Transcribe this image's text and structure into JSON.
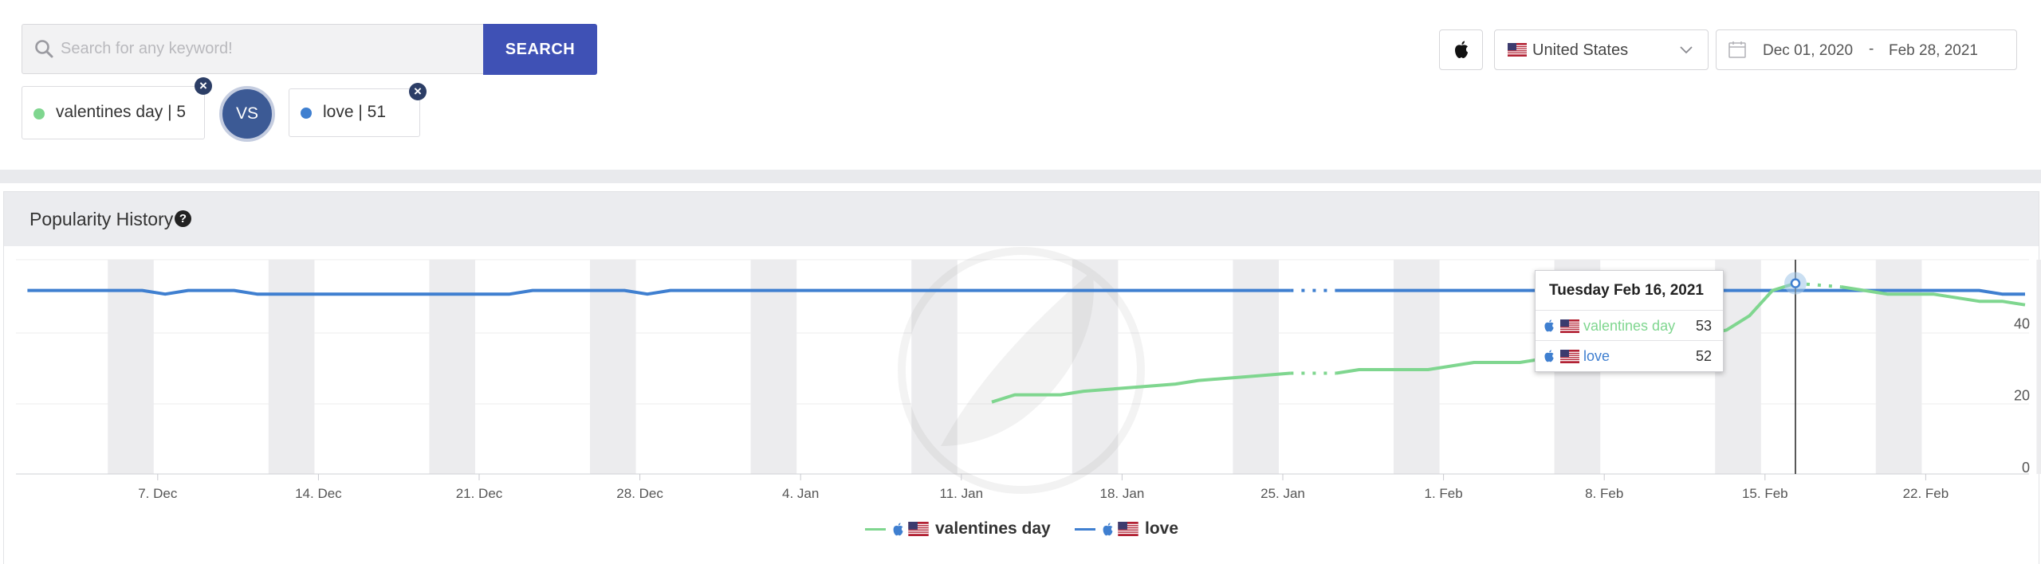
{
  "search": {
    "placeholder": "Search for any keyword!",
    "button_label": "SEARCH"
  },
  "filters": {
    "platform_icon": "apple-icon",
    "country": "United States",
    "date_from": "Dec 01, 2020",
    "date_sep": "-",
    "date_to": "Feb 28, 2021"
  },
  "compare": {
    "vs_label": "VS",
    "keywords": [
      {
        "label": "valentines day | 5",
        "color": "#7fd68f"
      },
      {
        "label": "love | 51",
        "color": "#3f7fd0"
      }
    ]
  },
  "panel": {
    "title": "Popularity History",
    "help_icon": "question-circle-icon"
  },
  "tooltip": {
    "date": "Tuesday Feb 16, 2021",
    "rows": [
      {
        "name": "valentines day",
        "value": "53",
        "color": "#7fd68f"
      },
      {
        "name": "love",
        "value": "52",
        "color": "#3f7fd0"
      }
    ]
  },
  "legend": [
    {
      "name": "valentines day",
      "color": "#7fd68f"
    },
    {
      "name": "love",
      "color": "#3f7fd0"
    }
  ],
  "chart_data": {
    "type": "line",
    "x_start": "2020-12-01",
    "x_end": "2021-02-26",
    "x_ticks": [
      "7. Dec",
      "14. Dec",
      "21. Dec",
      "28. Dec",
      "4. Jan",
      "11. Jan",
      "18. Jan",
      "25. Jan",
      "1. Feb",
      "8. Feb",
      "15. Feb",
      "22. Feb"
    ],
    "y_ticks": [
      "0",
      "20",
      "40"
    ],
    "ylim": [
      0,
      60
    ],
    "weekend_shading": true,
    "highlight_date": "2021-02-16",
    "legend_position": "bottom-center",
    "series": [
      {
        "name": "love",
        "color": "#3f7fd0",
        "points": [
          [
            "2020-12-01",
            51
          ],
          [
            "2020-12-06",
            51
          ],
          [
            "2020-12-07",
            50
          ],
          [
            "2020-12-08",
            51
          ],
          [
            "2020-12-10",
            51
          ],
          [
            "2020-12-11",
            50
          ],
          [
            "2020-12-22",
            50
          ],
          [
            "2020-12-23",
            51
          ],
          [
            "2020-12-27",
            51
          ],
          [
            "2020-12-28",
            50
          ],
          [
            "2020-12-29",
            51
          ],
          [
            "2021-01-25",
            51
          ],
          [
            "2021-01-27",
            51
          ],
          [
            "2021-02-18",
            51
          ],
          [
            "2021-02-24",
            51
          ],
          [
            "2021-02-25",
            50
          ],
          [
            "2021-02-26",
            50
          ]
        ],
        "gaps": [
          [
            "2021-01-25",
            "2021-01-27"
          ],
          [
            "2021-02-16",
            "2021-02-18"
          ]
        ]
      },
      {
        "name": "valentines day",
        "color": "#7fd68f",
        "points": [
          [
            "2021-01-12",
            20
          ],
          [
            "2021-01-13",
            22
          ],
          [
            "2021-01-15",
            22
          ],
          [
            "2021-01-16",
            23
          ],
          [
            "2021-01-18",
            24
          ],
          [
            "2021-01-20",
            25
          ],
          [
            "2021-01-21",
            26
          ],
          [
            "2021-01-23",
            27
          ],
          [
            "2021-01-25",
            28
          ],
          [
            "2021-01-27",
            28
          ],
          [
            "2021-01-28",
            29
          ],
          [
            "2021-01-31",
            29
          ],
          [
            "2021-02-02",
            31
          ],
          [
            "2021-02-04",
            31
          ],
          [
            "2021-02-06",
            33
          ],
          [
            "2021-02-08",
            35
          ],
          [
            "2021-02-10",
            36
          ],
          [
            "2021-02-13",
            40
          ],
          [
            "2021-02-14",
            44
          ],
          [
            "2021-02-15",
            51
          ],
          [
            "2021-02-16",
            53
          ],
          [
            "2021-02-18",
            52
          ],
          [
            "2021-02-19",
            51
          ],
          [
            "2021-02-20",
            50
          ],
          [
            "2021-02-22",
            50
          ],
          [
            "2021-02-23",
            49
          ],
          [
            "2021-02-24",
            48
          ],
          [
            "2021-02-25",
            48
          ],
          [
            "2021-02-26",
            47
          ]
        ],
        "gaps": [
          [
            "2021-01-25",
            "2021-01-27"
          ],
          [
            "2021-02-16",
            "2021-02-18"
          ]
        ]
      }
    ]
  }
}
